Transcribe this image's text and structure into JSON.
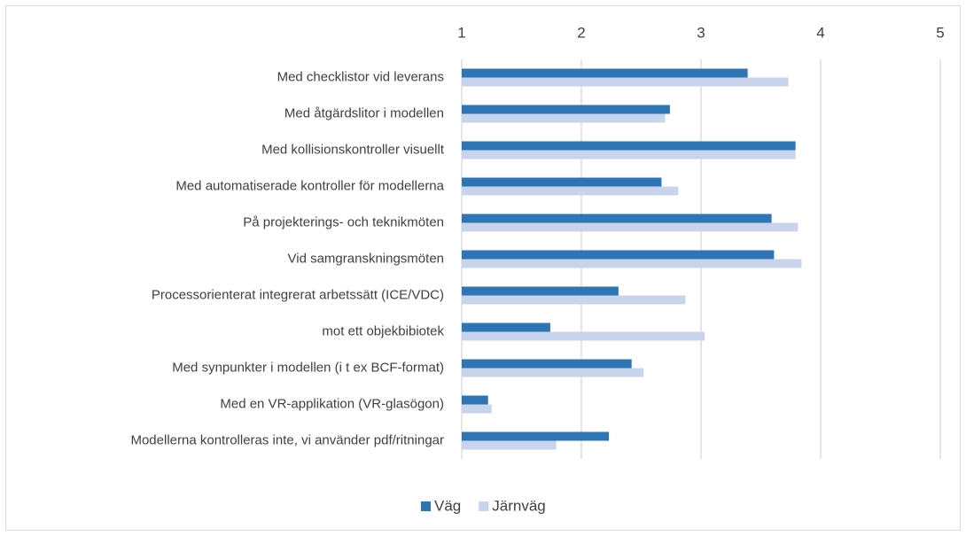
{
  "chart_data": {
    "type": "hbar",
    "categories": [
      "Med checklistor vid leverans",
      "Med åtgärdslitor i modellen",
      "Med kollisionskontroller visuellt",
      "Med automatiserade kontroller för modellerna",
      "På projekterings- och teknikmöten",
      "Vid samgranskningsmöten",
      "Processorienterat integrerat arbetssätt (ICE/VDC)",
      "mot ett objekbibiotek",
      "Med synpunkter i modellen (i t ex BCF-format)",
      "Med en VR-applikation (VR-glasögon)",
      "Modellerna kontrolleras inte, vi använder pdf/ritningar"
    ],
    "series": [
      {
        "name": "Väg",
        "color": "#2e75b6",
        "values": [
          3.39,
          2.74,
          3.79,
          2.67,
          3.59,
          3.61,
          2.31,
          1.74,
          2.42,
          1.22,
          2.23
        ]
      },
      {
        "name": "Järnväg",
        "color": "#c8d4ec",
        "values": [
          3.73,
          2.7,
          3.79,
          2.81,
          3.81,
          3.84,
          2.87,
          3.03,
          2.52,
          1.25,
          1.79
        ]
      }
    ],
    "xlim": [
      1,
      5
    ],
    "xticks": [
      1,
      2,
      3,
      4,
      5
    ],
    "grid": true,
    "legend": "bottom"
  }
}
